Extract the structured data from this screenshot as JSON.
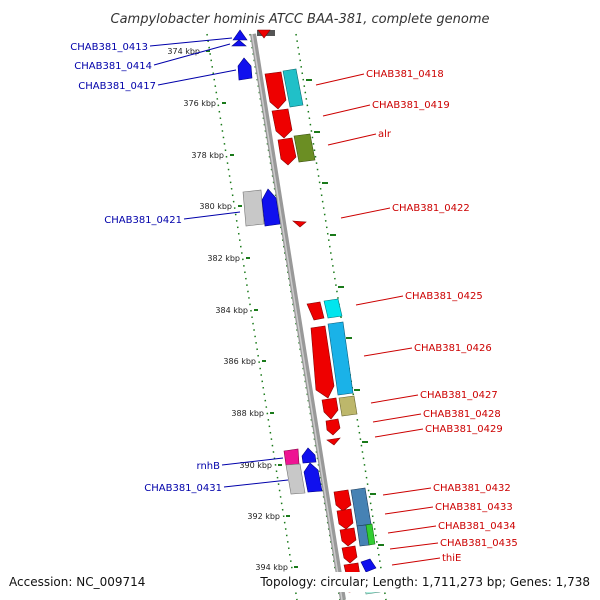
{
  "title": "Campylobacter hominis ATCC BAA-381, complete genome",
  "footer": {
    "accession": "Accession: NC_009714",
    "summary": "Topology: circular; Length: 1,711,273 bp; Genes: 1,738"
  },
  "colors": {
    "forward_label": "#cc0000",
    "reverse_label": "#0000aa",
    "backbone": "#888888",
    "tick": "#1a7a1a"
  },
  "axis": {
    "unit": "kbp",
    "tick_labels": [
      "374 kbp",
      "376 kbp",
      "378 kbp",
      "380 kbp",
      "382 kbp",
      "384 kbp",
      "386 kbp",
      "388 kbp",
      "390 kbp",
      "392 kbp",
      "394 kbp"
    ]
  },
  "gene_labels": {
    "forward": [
      "CHAB381_0418",
      "CHAB381_0419",
      "alr",
      "CHAB381_0422",
      "CHAB381_0425",
      "CHAB381_0426",
      "CHAB381_0427",
      "CHAB381_0428",
      "CHAB381_0429",
      "CHAB381_0432",
      "CHAB381_0433",
      "CHAB381_0434",
      "CHAB381_0435",
      "thiE"
    ],
    "reverse": [
      "CHAB381_0413",
      "CHAB381_0414",
      "CHAB381_0417",
      "CHAB381_0421",
      "rnhB",
      "CHAB381_0431"
    ]
  }
}
